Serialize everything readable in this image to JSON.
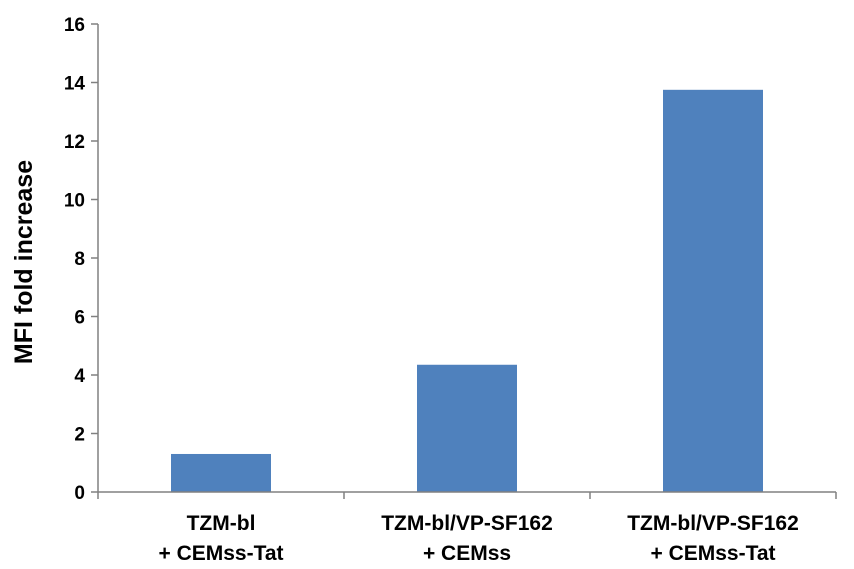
{
  "chart_data": {
    "type": "bar",
    "categories": [
      [
        "TZM-bl",
        "+ CEMss-Tat"
      ],
      [
        "TZM-bl/VP-SF162",
        "+ CEMss"
      ],
      [
        "TZM-bl/VP-SF162",
        "+ CEMss-Tat"
      ]
    ],
    "values": [
      1.3,
      4.35,
      13.75
    ],
    "ylabel": "MFI fold increase",
    "ylim": [
      0,
      16
    ],
    "yticks": [
      0,
      2,
      4,
      6,
      8,
      10,
      12,
      14,
      16
    ],
    "grid": false,
    "legend": "none",
    "bar_color": "#4f81bd"
  }
}
